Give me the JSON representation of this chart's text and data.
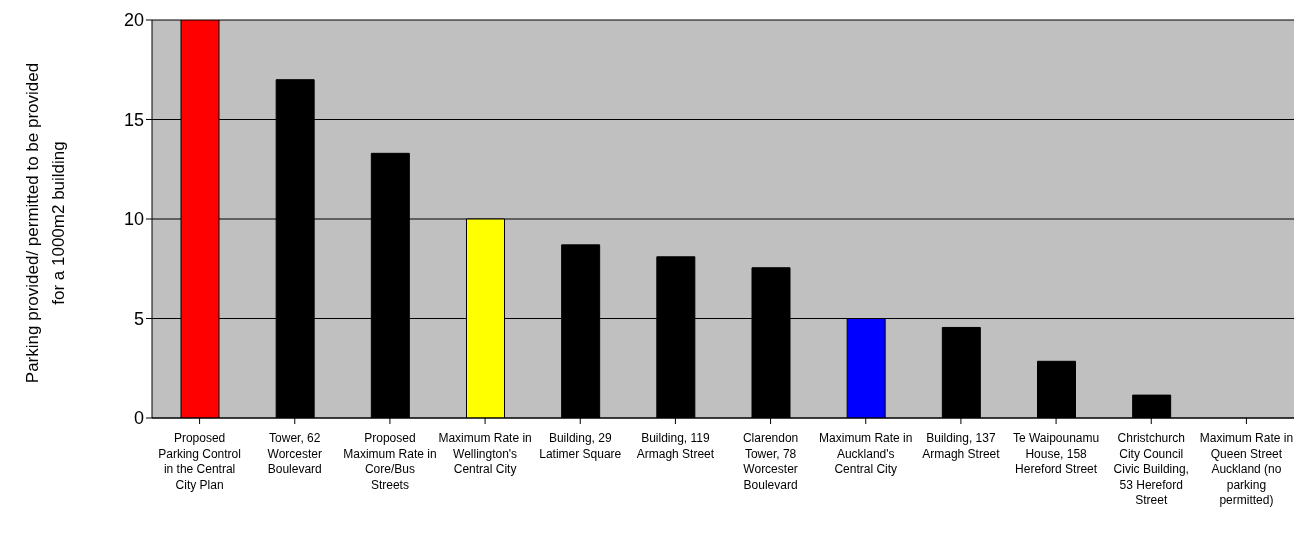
{
  "chart_data": {
    "type": "bar",
    "ylabel": "Parking provided/ permitted to be provided for a 1000m2 building",
    "categories": [
      "Proposed Parking Control in the Central City Plan",
      "Tower, 62 Worcester Boulevard",
      "Proposed Maximum Rate in Core/Bus Streets",
      "Maximum Rate in Wellington's Central City",
      "Building, 29 Latimer Square",
      "Building, 119 Armagh Street",
      "Clarendon Tower, 78 Worcester Boulevard",
      "Maximum Rate in Auckland's Central City",
      "Building, 137 Armagh Street",
      "Te Waipounamu House, 158 Hereford Street",
      "Christchurch City Council Civic Building, 53 Hereford Street",
      "Maximum Rate in Queen Street Auckland (no parking permitted)"
    ],
    "values": [
      20,
      17,
      13.3,
      10,
      8.7,
      8.1,
      7.55,
      5,
      4.55,
      2.85,
      1.15,
      0
    ],
    "colors": [
      "#ff0000",
      "#000000",
      "#000000",
      "#ffff00",
      "#000000",
      "#000000",
      "#000000",
      "#0000ff",
      "#000000",
      "#000000",
      "#000000",
      "#000000"
    ],
    "ylim": [
      0,
      20
    ],
    "yticks": [
      0,
      5,
      10,
      15,
      20
    ],
    "grid": "y"
  }
}
